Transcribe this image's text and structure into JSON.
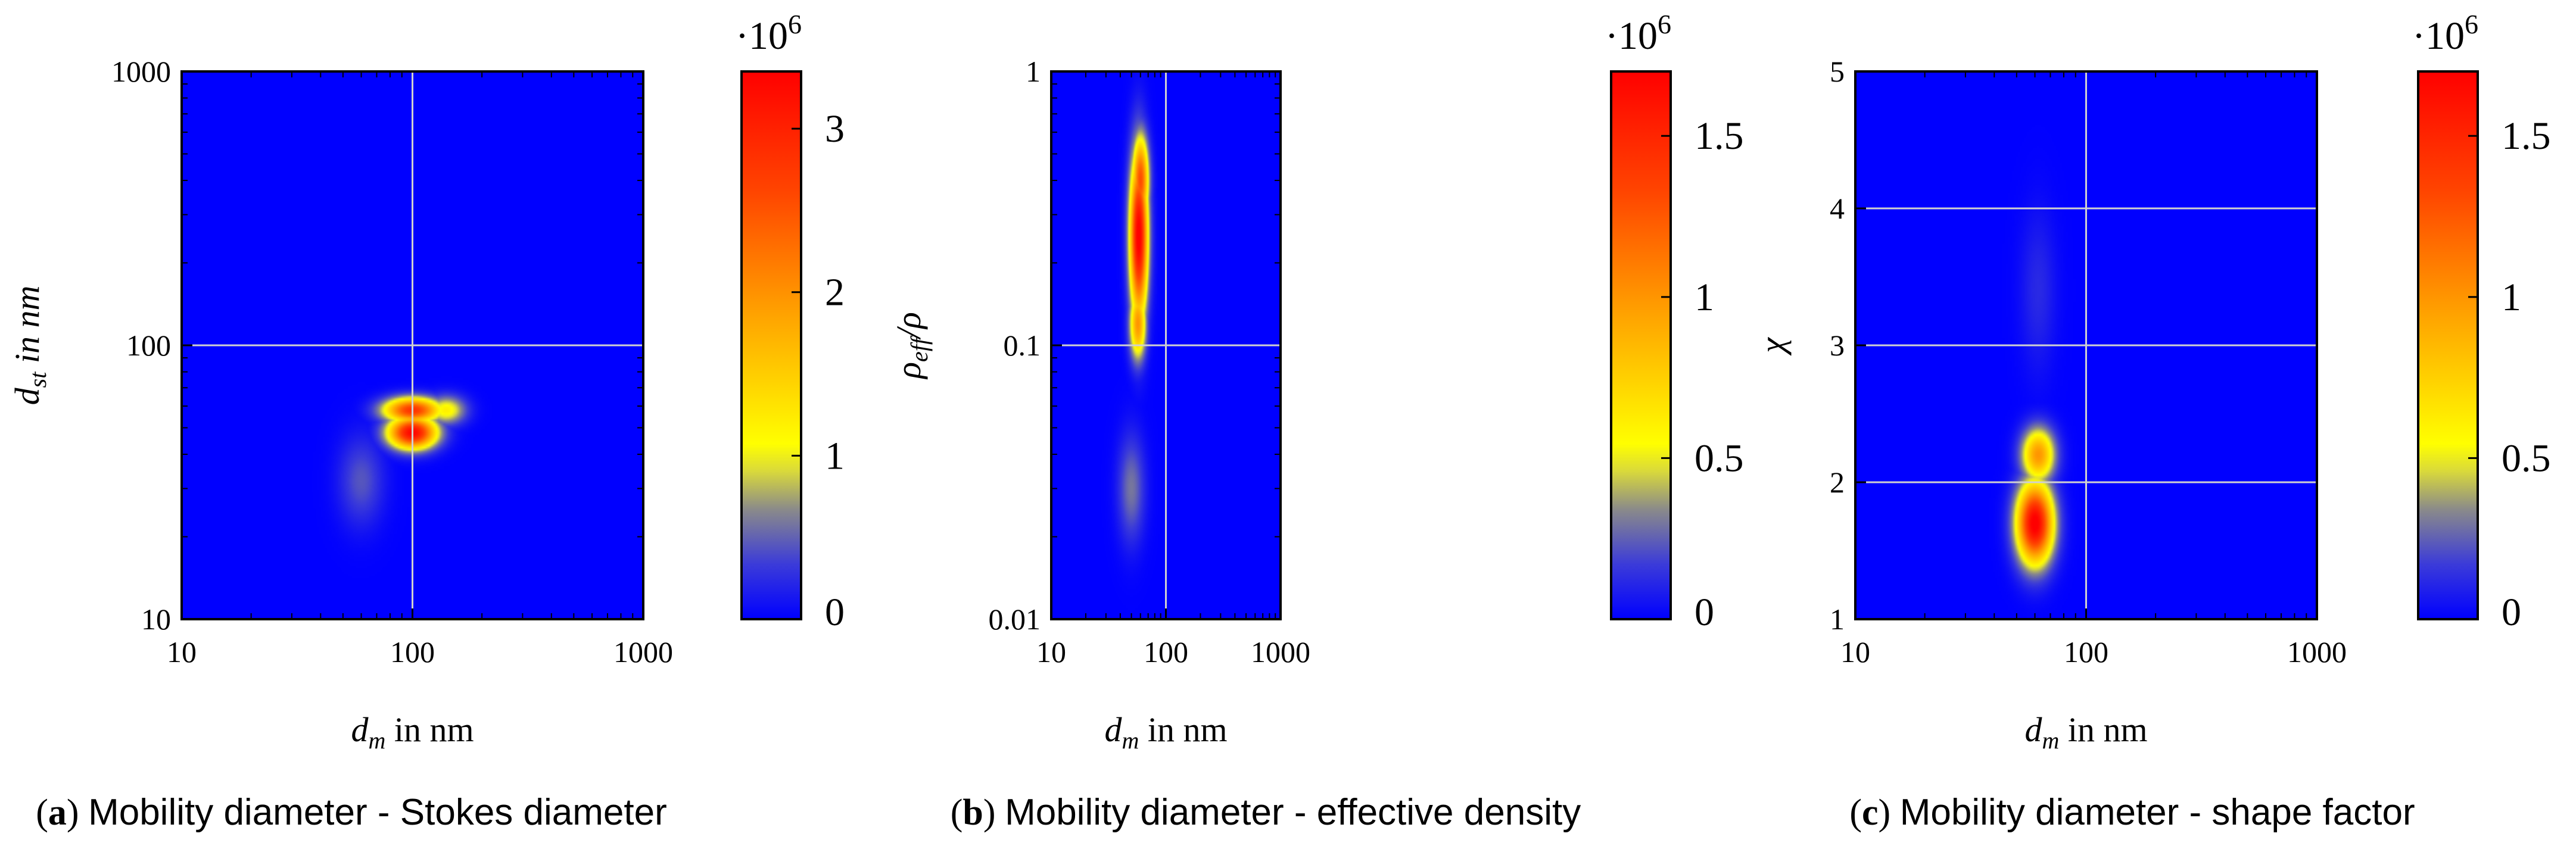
{
  "chart_data": [
    {
      "type": "heatmap",
      "panel": "a",
      "caption_letter": "a",
      "caption_text": "Mobility diameter - Stokes diameter",
      "xlabel": {
        "main": "d",
        "sub": "m",
        "tail": " in nm"
      },
      "ylabel": {
        "main": "d",
        "sub": "st",
        "tail": " in nm"
      },
      "xscale": "log",
      "yscale": "log",
      "xlim": [
        10,
        1000
      ],
      "ylim": [
        10,
        1000
      ],
      "xticks": [
        "10",
        "100",
        "1000"
      ],
      "xtick_values": [
        10,
        100,
        1000
      ],
      "yticks": [
        "10",
        "100",
        "1000"
      ],
      "ytick_values": [
        10,
        100,
        1000
      ],
      "grid": true,
      "colorbar": {
        "min": 0,
        "max": 3.35,
        "ticks": [
          "0",
          "1",
          "2",
          "3"
        ],
        "tick_values": [
          0,
          1,
          2,
          3
        ],
        "multiplier": "·10",
        "exponent": "6"
      },
      "blobs": [
        {
          "x": 100,
          "y": 48,
          "x_spread": 0.16,
          "y_spread": 0.09,
          "value": 3.3
        },
        {
          "x": 100,
          "y": 58,
          "x_spread": 0.19,
          "y_spread": 0.07,
          "value": 2.8
        },
        {
          "x": 140,
          "y": 58,
          "x_spread": 0.13,
          "y_spread": 0.08,
          "value": 1.2
        },
        {
          "x": 60,
          "y": 32,
          "x_spread": 0.15,
          "y_spread": 0.25,
          "value": 0.45
        }
      ]
    },
    {
      "type": "heatmap",
      "panel": "b",
      "caption_letter": "b",
      "caption_text": "Mobility diameter - effective density",
      "xlabel": {
        "main": "d",
        "sub": "m",
        "tail": " in nm"
      },
      "ylabel": {
        "main": "ρ",
        "sub": "eff",
        "tail": "/ρ"
      },
      "xscale": "log",
      "yscale": "log",
      "xlim": [
        10,
        1000
      ],
      "ylim": [
        0.01,
        1
      ],
      "xticks": [
        "10",
        "100",
        "1000"
      ],
      "xtick_values": [
        10,
        100,
        1000
      ],
      "yticks": [
        "0.01",
        "0.1",
        "1"
      ],
      "ytick_values": [
        0.01,
        0.1,
        1
      ],
      "grid": true,
      "colorbar": {
        "min": 0,
        "max": 1.7,
        "ticks": [
          "0",
          "0.5",
          "1",
          "1.5"
        ],
        "tick_values": [
          0,
          0.5,
          1,
          1.5
        ],
        "multiplier": "·10",
        "exponent": "6"
      },
      "blobs": [
        {
          "x": 58,
          "y": 0.25,
          "x_spread": 0.12,
          "y_spread": 0.45,
          "value": 1.75
        },
        {
          "x": 60,
          "y": 0.4,
          "x_spread": 0.11,
          "y_spread": 0.25,
          "value": 1.3
        },
        {
          "x": 57,
          "y": 0.12,
          "x_spread": 0.11,
          "y_spread": 0.2,
          "value": 1.0
        },
        {
          "x": 50,
          "y": 0.03,
          "x_spread": 0.18,
          "y_spread": 0.3,
          "value": 0.3
        }
      ]
    },
    {
      "type": "heatmap",
      "panel": "c",
      "caption_letter": "c",
      "caption_text": "Mobility diameter - shape factor",
      "xlabel": {
        "main": "d",
        "sub": "m",
        "tail": " in nm"
      },
      "ylabel": {
        "main": "χ",
        "sub": "",
        "tail": ""
      },
      "xscale": "log",
      "yscale": "linear",
      "xlim": [
        10,
        1000
      ],
      "ylim": [
        1,
        5
      ],
      "xticks": [
        "10",
        "100",
        "1000"
      ],
      "xtick_values": [
        10,
        100,
        1000
      ],
      "yticks": [
        "1",
        "2",
        "3",
        "4",
        "5"
      ],
      "ytick_values": [
        1,
        2,
        3,
        4,
        5
      ],
      "grid": true,
      "colorbar": {
        "min": 0,
        "max": 1.7,
        "ticks": [
          "0",
          "0.5",
          "1",
          "1.5"
        ],
        "tick_values": [
          0,
          0.5,
          1,
          1.5
        ],
        "multiplier": "·10",
        "exponent": "6"
      },
      "blobs": [
        {
          "x": 60,
          "y": 1.7,
          "x_spread": 0.12,
          "y_spread": 0.45,
          "value": 1.75
        },
        {
          "x": 62,
          "y": 2.2,
          "x_spread": 0.11,
          "y_spread": 0.3,
          "value": 1.0
        },
        {
          "x": 62,
          "y": 3.4,
          "x_spread": 0.12,
          "y_spread": 0.9,
          "value": 0.12
        }
      ]
    }
  ],
  "colors": {
    "axis": "#000000",
    "grid": "#d0d0d0",
    "colormap": [
      "#0000ff",
      "#3b3bd9",
      "#8a8a8a",
      "#d9d93b",
      "#ffff00",
      "#ffa500",
      "#ff4500",
      "#ff0000"
    ]
  }
}
